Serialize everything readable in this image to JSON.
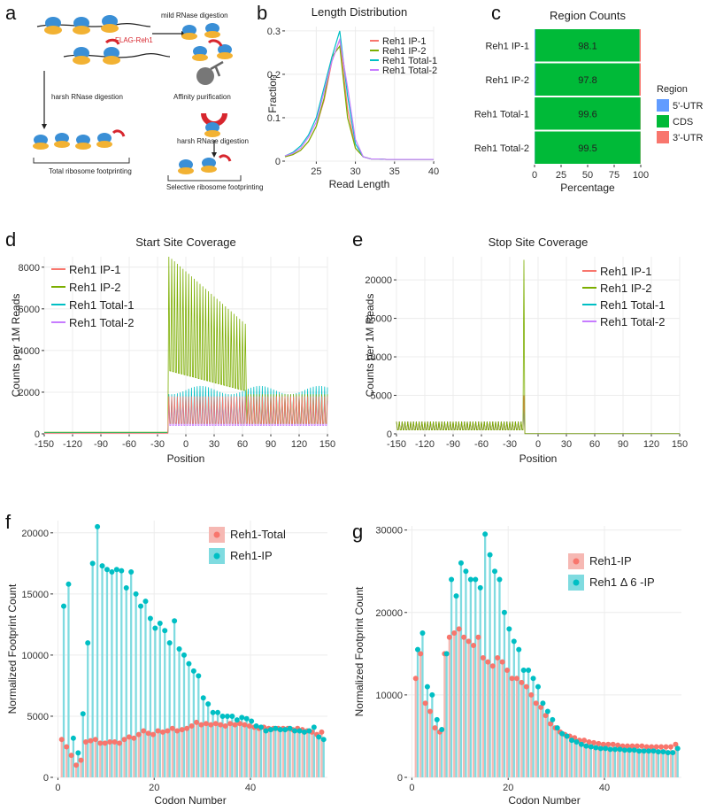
{
  "panels": {
    "a": {
      "letter": "a",
      "labels": [
        "mild RNase digestion",
        "FLAG-Reh1",
        "Affinity purification",
        "harsh RNase digestion",
        "harsh RNase digestion"
      ],
      "total_label": "Total ribosome footprinting",
      "selective_label": "Selective ribosome footprinting"
    },
    "b": {
      "letter": "b"
    },
    "c": {
      "letter": "c"
    },
    "d": {
      "letter": "d"
    },
    "e": {
      "letter": "e"
    },
    "f": {
      "letter": "f"
    },
    "g": {
      "letter": "g"
    }
  },
  "colors": {
    "red": "#f8766d",
    "olive": "#7cae00",
    "cyan": "#00bfc4",
    "purple": "#c77cff",
    "blue": "#619cff",
    "green": "#00ba38",
    "pink_bar": "#f6b8b3",
    "cyan_bar": "#7fdbe0"
  },
  "chart_data": [
    {
      "id": "b",
      "type": "line",
      "title": "Length Distribution",
      "xlabel": "Read Length",
      "ylabel": "Fraction",
      "xlim": [
        21,
        40
      ],
      "ylim": [
        0,
        0.31
      ],
      "xticks": [
        25,
        30,
        35,
        40
      ],
      "yticks": [
        0,
        0.1,
        0.2,
        0.3
      ],
      "x": [
        21,
        22,
        23,
        24,
        25,
        26,
        27,
        28,
        29,
        30,
        31,
        32,
        33,
        34,
        35,
        36,
        37,
        38,
        39,
        40
      ],
      "series": [
        {
          "name": "Reh1 IP-1",
          "values": [
            0.01,
            0.015,
            0.025,
            0.045,
            0.08,
            0.14,
            0.23,
            0.28,
            0.12,
            0.03,
            0.01,
            0.005,
            0.005,
            0.004,
            0.004,
            0.004,
            0.004,
            0.004,
            0.004,
            0.004
          ]
        },
        {
          "name": "Reh1 IP-2",
          "values": [
            0.01,
            0.015,
            0.025,
            0.045,
            0.08,
            0.145,
            0.24,
            0.265,
            0.1,
            0.03,
            0.01,
            0.005,
            0.005,
            0.004,
            0.004,
            0.004,
            0.004,
            0.004,
            0.004,
            0.004
          ]
        },
        {
          "name": "Reh1 Total-1",
          "values": [
            0.012,
            0.02,
            0.035,
            0.06,
            0.1,
            0.17,
            0.24,
            0.3,
            0.15,
            0.04,
            0.01,
            0.005,
            0.005,
            0.004,
            0.004,
            0.004,
            0.004,
            0.004,
            0.004,
            0.004
          ]
        },
        {
          "name": "Reh1 Total-2",
          "values": [
            0.012,
            0.018,
            0.03,
            0.055,
            0.09,
            0.16,
            0.23,
            0.28,
            0.17,
            0.05,
            0.01,
            0.005,
            0.005,
            0.004,
            0.004,
            0.004,
            0.004,
            0.004,
            0.004,
            0.004
          ]
        }
      ]
    },
    {
      "id": "c",
      "type": "bar",
      "title": "Region Counts",
      "xlabel": "Percentage",
      "legend_title": "Region",
      "categories": [
        "Reh1 IP-1",
        "Reh1 IP-2",
        "Reh1 Total-1",
        "Reh1 Total-2"
      ],
      "xticks": [
        0,
        25,
        50,
        75,
        100
      ],
      "series": [
        {
          "name": "5'-UTR",
          "values": [
            0.8,
            0.9,
            0.2,
            0.3
          ]
        },
        {
          "name": "CDS",
          "values": [
            98.1,
            97.8,
            99.6,
            99.5
          ]
        },
        {
          "name": "3'-UTR",
          "values": [
            1.1,
            1.3,
            0.2,
            0.2
          ]
        }
      ],
      "data_labels": [
        "98.1",
        "97.8",
        "99.6",
        "99.5"
      ]
    },
    {
      "id": "d",
      "type": "line",
      "title": "Start Site Coverage",
      "xlabel": "Position",
      "ylabel": "Counts per 1M Reads",
      "xlim": [
        -150,
        150
      ],
      "ylim": [
        0,
        8500
      ],
      "xticks": [
        -150,
        -120,
        -90,
        -60,
        -30,
        0,
        30,
        60,
        90,
        120,
        150
      ],
      "yticks": [
        0,
        2000,
        4000,
        6000,
        8000
      ],
      "series": [
        {
          "name": "Reh1  IP-1",
          "profile": "start",
          "base": 0,
          "peak": 0,
          "tail": 0
        },
        {
          "name": "Reh1  IP-2",
          "profile": "start_ip",
          "pre": 80,
          "peak": 8400,
          "tail": 2000
        },
        {
          "name": "Reh1  Total-1",
          "profile": "start_total",
          "pre": 60,
          "mid": 2100,
          "tail": 2200
        },
        {
          "name": "Reh1  Total-2",
          "profile": "start_total",
          "pre": 50,
          "mid": 1600,
          "tail": 1700
        }
      ]
    },
    {
      "id": "e",
      "type": "line",
      "title": "Stop Site Coverage",
      "xlabel": "Position",
      "ylabel": "Counts per 1M Reads",
      "xlim": [
        -150,
        150
      ],
      "ylim": [
        0,
        23000
      ],
      "xticks": [
        -150,
        -120,
        -90,
        -60,
        -30,
        0,
        30,
        60,
        90,
        120,
        150
      ],
      "yticks": [
        0,
        5000,
        10000,
        15000,
        20000
      ],
      "series": [
        {
          "name": "Reh1  IP-1",
          "peak": 5000
        },
        {
          "name": "Reh1  IP-2",
          "peak": 22600
        },
        {
          "name": "Reh1  Total-1",
          "peak": 4000
        },
        {
          "name": "Reh1  Total-2",
          "peak": 3000
        }
      ],
      "stop_peak_position": -15,
      "pre_level": 1600
    },
    {
      "id": "f",
      "type": "bar",
      "xlabel": "Codon Number",
      "ylabel": "Normalized Footprint Count",
      "xlim": [
        -1,
        56
      ],
      "ylim": [
        0,
        21000
      ],
      "xticks": [
        0,
        20,
        40
      ],
      "yticks": [
        0,
        5000,
        10000,
        15000,
        20000
      ],
      "categories_start": 1,
      "series": [
        {
          "name": "Reh1-Total",
          "values": [
            3100,
            2500,
            1800,
            1000,
            1400,
            2900,
            3000,
            3100,
            2800,
            2800,
            2900,
            2900,
            2800,
            3100,
            3300,
            3200,
            3500,
            3800,
            3600,
            3500,
            3800,
            3700,
            3800,
            4000,
            3800,
            3900,
            4000,
            4200,
            4500,
            4300,
            4400,
            4300,
            4400,
            4300,
            4200,
            4400,
            4300,
            4400,
            4300,
            4200,
            4100,
            4000,
            4100,
            4000,
            4000,
            4000,
            4000,
            4000,
            3900,
            4000,
            3900,
            3800,
            3700,
            3500,
            3700
          ]
        },
        {
          "name": "Reh1-IP",
          "values": [
            14000,
            15800,
            3200,
            2000,
            5200,
            11000,
            17500,
            20500,
            17300,
            17000,
            16800,
            17000,
            16900,
            15500,
            16800,
            15000,
            14000,
            14400,
            13000,
            12200,
            12600,
            12000,
            11000,
            12800,
            10500,
            10000,
            9300,
            8700,
            8300,
            6500,
            6000,
            5300,
            5300,
            5000,
            5000,
            5000,
            4700,
            4900,
            4800,
            4600,
            4200,
            4100,
            3800,
            3900,
            4000,
            3900,
            3900,
            4000,
            3800,
            3800,
            3700,
            3800,
            4100,
            3300,
            3100
          ]
        }
      ]
    },
    {
      "id": "g",
      "type": "bar",
      "xlabel": "Codon Number",
      "ylabel": "Normalized Footprint Count",
      "xlim": [
        -1,
        56
      ],
      "ylim": [
        0,
        30500
      ],
      "xticks": [
        0,
        20,
        40
      ],
      "yticks": [
        0,
        10000,
        20000,
        30000
      ],
      "categories_start": 1,
      "series": [
        {
          "name": "Reh1-IP",
          "values": [
            12000,
            15000,
            9000,
            8000,
            6000,
            5500,
            15000,
            17000,
            17500,
            18000,
            17000,
            16500,
            16000,
            17000,
            14500,
            14000,
            13500,
            14500,
            14000,
            13000,
            12000,
            12000,
            11500,
            11000,
            10000,
            9000,
            8500,
            7500,
            6500,
            6000,
            5500,
            5200,
            5000,
            4800,
            4500,
            4500,
            4300,
            4200,
            4100,
            4000,
            4000,
            4000,
            3900,
            3800,
            3800,
            3800,
            3800,
            3800,
            3700,
            3700,
            3700,
            3700,
            3700,
            3700,
            4000
          ]
        },
        {
          "name": "Reh1 Δ 6 -IP",
          "values": [
            15500,
            17500,
            11000,
            10000,
            7000,
            5800,
            15000,
            24000,
            22000,
            26000,
            25000,
            24000,
            24000,
            23000,
            29500,
            27000,
            25000,
            24000,
            20000,
            18000,
            16500,
            15500,
            13000,
            13000,
            12000,
            11000,
            9000,
            8000,
            7000,
            6000,
            5300,
            5000,
            4500,
            4300,
            4000,
            3800,
            3700,
            3600,
            3500,
            3500,
            3400,
            3400,
            3400,
            3300,
            3300,
            3300,
            3200,
            3200,
            3200,
            3200,
            3100,
            3100,
            3000,
            3000,
            3500
          ]
        }
      ]
    }
  ]
}
